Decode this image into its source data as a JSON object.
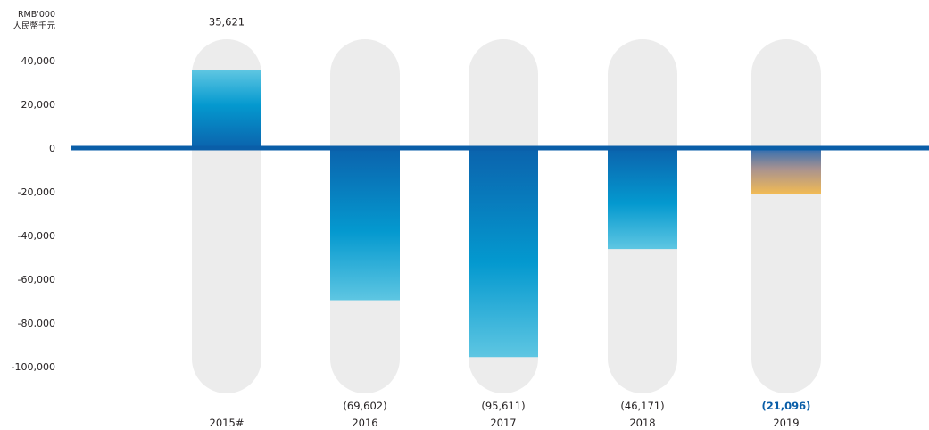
{
  "chart_data": {
    "type": "bar",
    "unit_label_line1": "RMB'000",
    "unit_label_line2": "人民幣千元",
    "categories": [
      "2015#",
      "2016",
      "2017",
      "2018",
      "2019"
    ],
    "values": [
      35621,
      -69602,
      -95611,
      -46171,
      -21096
    ],
    "value_labels": [
      "35,621",
      "(69,602)",
      "(95,611)",
      "(46,171)",
      "(21,096)"
    ],
    "highlight_index": 4,
    "ylim": [
      -110000,
      40000
    ],
    "yticks": [
      40000,
      20000,
      0,
      -20000,
      -40000,
      -60000,
      -80000,
      -100000
    ],
    "ytick_labels": [
      "40,000",
      "20,000",
      "0",
      "-20,000",
      "-40,000",
      "-60,000",
      "-80,000",
      "-100,000"
    ],
    "title": "",
    "xlabel": "",
    "ylabel": "",
    "colors": {
      "baseline": "#0a5ea8",
      "pill": "#ececec",
      "bar_dark": "#0b63ad",
      "bar_mid": "#0499cf",
      "bar_light": "#5ec6e2",
      "highlight_top": "#2e6db2",
      "highlight_bottom": "#f3bb53",
      "highlight_text": "#0a5ea8"
    }
  }
}
